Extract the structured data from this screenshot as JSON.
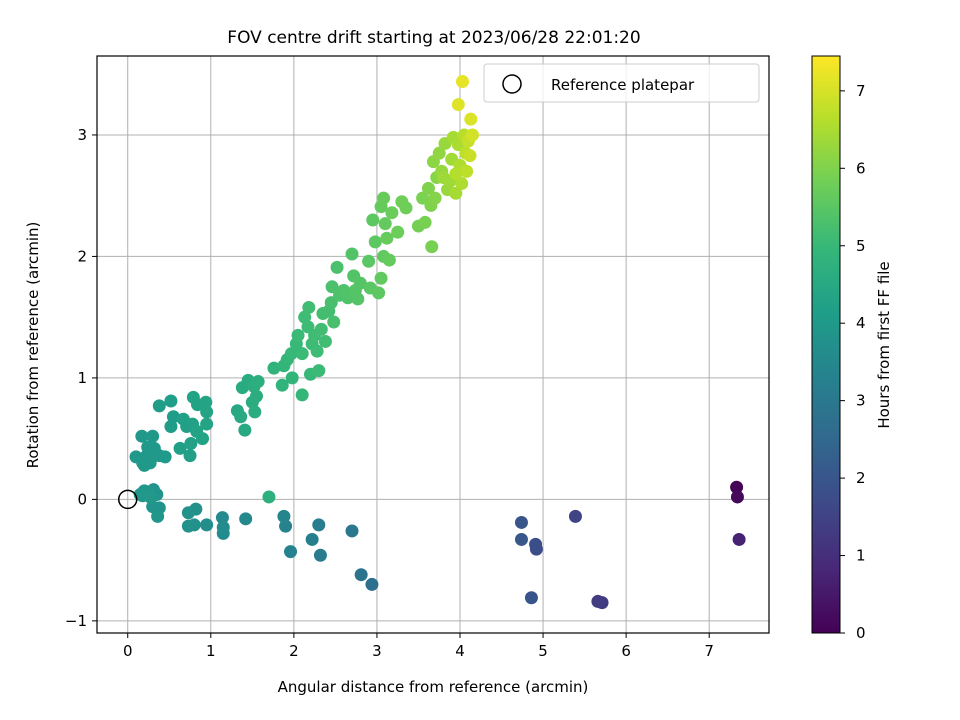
{
  "chart_data": {
    "type": "scatter",
    "title": "FOV centre drift starting at 2023/06/28 22:01:20",
    "xlabel": "Angular distance from reference (arcmin)",
    "ylabel": "Rotation from reference (arcmin)",
    "xlim": [
      -0.37,
      7.72
    ],
    "ylim": [
      -1.1,
      3.65
    ],
    "xticks": [
      0,
      1,
      2,
      3,
      4,
      5,
      6,
      7
    ],
    "yticks": [
      -1,
      0,
      1,
      2,
      3
    ],
    "grid": true,
    "legend": {
      "position": "top-right",
      "entries": [
        "Reference platepar"
      ]
    },
    "reference": {
      "x": 0,
      "y": 0,
      "label": "Reference platepar"
    },
    "colorbar": {
      "label": "Hours from first FF file",
      "range": [
        0,
        7.45
      ],
      "ticks": [
        0,
        1,
        2,
        3,
        4,
        5,
        6,
        7
      ],
      "colormap": [
        "#440154",
        "#482878",
        "#3e4989",
        "#31688e",
        "#26828e",
        "#1f9e89",
        "#35b779",
        "#6ece58",
        "#b5de2b",
        "#fde725"
      ]
    },
    "points": [
      {
        "x": 7.33,
        "y": 0.1,
        "h": 0.05
      },
      {
        "x": 7.34,
        "y": 0.02,
        "h": 0.15
      },
      {
        "x": 7.36,
        "y": -0.33,
        "h": 0.7
      },
      {
        "x": 5.71,
        "y": -0.85,
        "h": 1.25
      },
      {
        "x": 5.66,
        "y": -0.84,
        "h": 1.35
      },
      {
        "x": 5.39,
        "y": -0.14,
        "h": 1.5
      },
      {
        "x": 4.92,
        "y": -0.41,
        "h": 1.75
      },
      {
        "x": 4.91,
        "y": -0.37,
        "h": 1.8
      },
      {
        "x": 4.86,
        "y": -0.81,
        "h": 1.95
      },
      {
        "x": 4.74,
        "y": -0.19,
        "h": 2.0
      },
      {
        "x": 4.74,
        "y": -0.33,
        "h": 2.05
      },
      {
        "x": 2.94,
        "y": -0.7,
        "h": 2.75
      },
      {
        "x": 2.81,
        "y": -0.62,
        "h": 2.85
      },
      {
        "x": 2.7,
        "y": -0.26,
        "h": 2.95
      },
      {
        "x": 2.32,
        "y": -0.46,
        "h": 3.1
      },
      {
        "x": 2.3,
        "y": -0.21,
        "h": 3.15
      },
      {
        "x": 2.22,
        "y": -0.33,
        "h": 3.2
      },
      {
        "x": 1.96,
        "y": -0.43,
        "h": 3.3
      },
      {
        "x": 1.9,
        "y": -0.22,
        "h": 3.35
      },
      {
        "x": 1.88,
        "y": -0.14,
        "h": 3.4
      },
      {
        "x": 1.42,
        "y": -0.16,
        "h": 3.5
      },
      {
        "x": 1.14,
        "y": -0.15,
        "h": 3.55
      },
      {
        "x": 1.15,
        "y": -0.23,
        "h": 3.6
      },
      {
        "x": 1.15,
        "y": -0.28,
        "h": 3.62
      },
      {
        "x": 0.95,
        "y": -0.21,
        "h": 3.7
      },
      {
        "x": 0.82,
        "y": -0.08,
        "h": 3.72
      },
      {
        "x": 0.8,
        "y": -0.21,
        "h": 3.75
      },
      {
        "x": 0.73,
        "y": -0.22,
        "h": 3.78
      },
      {
        "x": 0.73,
        "y": -0.11,
        "h": 3.8
      },
      {
        "x": 0.38,
        "y": -0.07,
        "h": 3.82
      },
      {
        "x": 0.35,
        "y": 0.04,
        "h": 3.85
      },
      {
        "x": 0.31,
        "y": 0.08,
        "h": 3.85
      },
      {
        "x": 0.3,
        "y": -0.06,
        "h": 3.88
      },
      {
        "x": 0.36,
        "y": -0.14,
        "h": 3.9
      },
      {
        "x": 0.2,
        "y": 0.07,
        "h": 3.9
      },
      {
        "x": 0.25,
        "y": 0.06,
        "h": 3.92
      },
      {
        "x": 0.18,
        "y": 0.03,
        "h": 3.95
      },
      {
        "x": 0.15,
        "y": 0.04,
        "h": 3.96
      },
      {
        "x": 0.27,
        "y": 0.02,
        "h": 3.96
      },
      {
        "x": 0.1,
        "y": 0.35,
        "h": 3.95
      },
      {
        "x": 0.18,
        "y": 0.3,
        "h": 3.97
      },
      {
        "x": 0.2,
        "y": 0.28,
        "h": 3.98
      },
      {
        "x": 0.27,
        "y": 0.3,
        "h": 4.0
      },
      {
        "x": 0.32,
        "y": 0.42,
        "h": 3.98
      },
      {
        "x": 0.38,
        "y": 0.36,
        "h": 4.0
      },
      {
        "x": 0.17,
        "y": 0.52,
        "h": 3.95
      },
      {
        "x": 0.3,
        "y": 0.52,
        "h": 3.97
      },
      {
        "x": 0.24,
        "y": 0.43,
        "h": 4.0
      },
      {
        "x": 0.45,
        "y": 0.35,
        "h": 4.02
      },
      {
        "x": 0.23,
        "y": 0.36,
        "h": 4.0
      },
      {
        "x": 0.38,
        "y": 0.77,
        "h": 4.1
      },
      {
        "x": 0.52,
        "y": 0.81,
        "h": 4.15
      },
      {
        "x": 0.55,
        "y": 0.68,
        "h": 4.1
      },
      {
        "x": 0.52,
        "y": 0.6,
        "h": 4.12
      },
      {
        "x": 0.67,
        "y": 0.66,
        "h": 4.2
      },
      {
        "x": 0.71,
        "y": 0.6,
        "h": 4.22
      },
      {
        "x": 0.78,
        "y": 0.62,
        "h": 4.25
      },
      {
        "x": 0.79,
        "y": 0.84,
        "h": 4.3
      },
      {
        "x": 0.84,
        "y": 0.78,
        "h": 4.3
      },
      {
        "x": 0.94,
        "y": 0.8,
        "h": 4.32
      },
      {
        "x": 0.83,
        "y": 0.56,
        "h": 4.28
      },
      {
        "x": 0.9,
        "y": 0.5,
        "h": 4.3
      },
      {
        "x": 0.76,
        "y": 0.46,
        "h": 4.25
      },
      {
        "x": 0.75,
        "y": 0.36,
        "h": 4.22
      },
      {
        "x": 0.63,
        "y": 0.42,
        "h": 4.2
      },
      {
        "x": 0.95,
        "y": 0.62,
        "h": 4.35
      },
      {
        "x": 0.95,
        "y": 0.72,
        "h": 4.35
      },
      {
        "x": 1.32,
        "y": 0.73,
        "h": 4.45
      },
      {
        "x": 1.36,
        "y": 0.68,
        "h": 4.5
      },
      {
        "x": 1.41,
        "y": 0.57,
        "h": 4.5
      },
      {
        "x": 1.38,
        "y": 0.92,
        "h": 4.55
      },
      {
        "x": 1.45,
        "y": 0.98,
        "h": 4.6
      },
      {
        "x": 1.52,
        "y": 0.93,
        "h": 4.62
      },
      {
        "x": 1.5,
        "y": 0.8,
        "h": 4.6
      },
      {
        "x": 1.53,
        "y": 0.72,
        "h": 4.62
      },
      {
        "x": 1.55,
        "y": 0.85,
        "h": 4.65
      },
      {
        "x": 1.57,
        "y": 0.97,
        "h": 4.68
      },
      {
        "x": 1.7,
        "y": 0.02,
        "h": 4.7
      },
      {
        "x": 1.76,
        "y": 1.08,
        "h": 4.8
      },
      {
        "x": 1.86,
        "y": 0.94,
        "h": 4.85
      },
      {
        "x": 1.88,
        "y": 1.1,
        "h": 4.9
      },
      {
        "x": 1.92,
        "y": 1.15,
        "h": 4.95
      },
      {
        "x": 1.97,
        "y": 1.2,
        "h": 5.0
      },
      {
        "x": 2.03,
        "y": 1.28,
        "h": 5.0
      },
      {
        "x": 2.05,
        "y": 1.35,
        "h": 5.05
      },
      {
        "x": 1.98,
        "y": 1.0,
        "h": 4.9
      },
      {
        "x": 2.1,
        "y": 0.86,
        "h": 4.95
      },
      {
        "x": 2.1,
        "y": 1.2,
        "h": 5.05
      },
      {
        "x": 2.17,
        "y": 1.42,
        "h": 5.1
      },
      {
        "x": 2.13,
        "y": 1.5,
        "h": 5.1
      },
      {
        "x": 2.18,
        "y": 1.58,
        "h": 5.15
      },
      {
        "x": 2.22,
        "y": 1.28,
        "h": 5.1
      },
      {
        "x": 2.25,
        "y": 1.35,
        "h": 5.12
      },
      {
        "x": 2.28,
        "y": 1.22,
        "h": 5.1
      },
      {
        "x": 2.3,
        "y": 1.06,
        "h": 5.05
      },
      {
        "x": 2.2,
        "y": 1.03,
        "h": 5.0
      },
      {
        "x": 2.33,
        "y": 1.4,
        "h": 5.15
      },
      {
        "x": 2.35,
        "y": 1.53,
        "h": 5.2
      },
      {
        "x": 2.38,
        "y": 1.3,
        "h": 5.15
      },
      {
        "x": 2.42,
        "y": 1.55,
        "h": 5.2
      },
      {
        "x": 2.45,
        "y": 1.62,
        "h": 5.25
      },
      {
        "x": 2.46,
        "y": 1.75,
        "h": 5.3
      },
      {
        "x": 2.48,
        "y": 1.46,
        "h": 5.25
      },
      {
        "x": 2.52,
        "y": 1.91,
        "h": 5.3
      },
      {
        "x": 2.55,
        "y": 1.68,
        "h": 5.32
      },
      {
        "x": 2.6,
        "y": 1.72,
        "h": 5.35
      },
      {
        "x": 2.65,
        "y": 1.66,
        "h": 5.35
      },
      {
        "x": 2.7,
        "y": 2.02,
        "h": 5.4
      },
      {
        "x": 2.72,
        "y": 1.84,
        "h": 5.4
      },
      {
        "x": 2.74,
        "y": 1.72,
        "h": 5.42
      },
      {
        "x": 2.77,
        "y": 1.65,
        "h": 5.42
      },
      {
        "x": 2.8,
        "y": 1.78,
        "h": 5.45
      },
      {
        "x": 2.9,
        "y": 1.96,
        "h": 5.5
      },
      {
        "x": 2.92,
        "y": 1.74,
        "h": 5.5
      },
      {
        "x": 2.95,
        "y": 2.3,
        "h": 5.55
      },
      {
        "x": 2.98,
        "y": 2.12,
        "h": 5.55
      },
      {
        "x": 3.02,
        "y": 1.7,
        "h": 5.55
      },
      {
        "x": 3.05,
        "y": 1.82,
        "h": 5.6
      },
      {
        "x": 3.08,
        "y": 2.0,
        "h": 5.62
      },
      {
        "x": 3.1,
        "y": 2.27,
        "h": 5.65
      },
      {
        "x": 3.05,
        "y": 2.41,
        "h": 5.65
      },
      {
        "x": 3.08,
        "y": 2.48,
        "h": 5.7
      },
      {
        "x": 3.12,
        "y": 2.15,
        "h": 5.7
      },
      {
        "x": 3.15,
        "y": 1.97,
        "h": 5.68
      },
      {
        "x": 3.18,
        "y": 2.36,
        "h": 5.72
      },
      {
        "x": 3.25,
        "y": 2.2,
        "h": 5.75
      },
      {
        "x": 3.3,
        "y": 2.45,
        "h": 5.8
      },
      {
        "x": 3.35,
        "y": 2.4,
        "h": 5.8
      },
      {
        "x": 3.5,
        "y": 2.25,
        "h": 5.85
      },
      {
        "x": 3.58,
        "y": 2.28,
        "h": 5.9
      },
      {
        "x": 3.55,
        "y": 2.48,
        "h": 5.95
      },
      {
        "x": 3.62,
        "y": 2.56,
        "h": 6.0
      },
      {
        "x": 3.65,
        "y": 2.42,
        "h": 6.0
      },
      {
        "x": 3.66,
        "y": 2.08,
        "h": 5.9
      },
      {
        "x": 3.7,
        "y": 2.48,
        "h": 6.05
      },
      {
        "x": 3.72,
        "y": 2.65,
        "h": 6.1
      },
      {
        "x": 3.68,
        "y": 2.78,
        "h": 6.15
      },
      {
        "x": 3.75,
        "y": 2.85,
        "h": 6.2
      },
      {
        "x": 3.78,
        "y": 2.7,
        "h": 6.25
      },
      {
        "x": 3.82,
        "y": 2.93,
        "h": 6.3
      },
      {
        "x": 3.85,
        "y": 2.55,
        "h": 6.3
      },
      {
        "x": 3.88,
        "y": 2.62,
        "h": 6.35
      },
      {
        "x": 3.9,
        "y": 2.8,
        "h": 6.4
      },
      {
        "x": 3.92,
        "y": 2.98,
        "h": 6.45
      },
      {
        "x": 3.95,
        "y": 2.52,
        "h": 6.45
      },
      {
        "x": 3.98,
        "y": 2.92,
        "h": 6.5
      },
      {
        "x": 4.0,
        "y": 2.75,
        "h": 6.55
      },
      {
        "x": 4.02,
        "y": 2.6,
        "h": 6.55
      },
      {
        "x": 4.05,
        "y": 3.0,
        "h": 6.65
      },
      {
        "x": 4.07,
        "y": 2.85,
        "h": 6.7
      },
      {
        "x": 4.08,
        "y": 2.7,
        "h": 6.7
      },
      {
        "x": 4.1,
        "y": 2.95,
        "h": 6.8
      },
      {
        "x": 4.12,
        "y": 2.83,
        "h": 6.85
      },
      {
        "x": 4.15,
        "y": 3.0,
        "h": 6.95
      },
      {
        "x": 4.13,
        "y": 3.13,
        "h": 7.05
      },
      {
        "x": 4.03,
        "y": 3.44,
        "h": 7.2
      },
      {
        "x": 3.98,
        "y": 3.25,
        "h": 7.1
      },
      {
        "x": 3.95,
        "y": 2.68,
        "h": 6.6
      },
      {
        "x": 3.8,
        "y": 2.65,
        "h": 6.35
      }
    ]
  }
}
